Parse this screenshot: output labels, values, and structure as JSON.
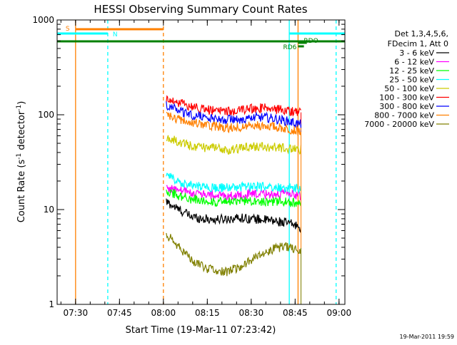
{
  "chart_data": {
    "type": "line",
    "title": "HESSI Observing Summary Count Rates",
    "xlabel": "Start Time (19-Mar-11 07:23:42)",
    "ylabel": "Count Rate (s",
    "ylabel_sup": "-1",
    "ylabel_rest": " detector",
    "ylabel_end": ")",
    "yscale": "log",
    "xlim": [
      "07:23:42",
      "09:02:00"
    ],
    "ylim": [
      1,
      1000
    ],
    "x_ticks": [
      "07:30",
      "07:45",
      "08:00",
      "08:15",
      "08:30",
      "08:45",
      "09:00"
    ],
    "y_ticks": [
      "1",
      "10",
      "100",
      "1000"
    ],
    "legend_title": [
      "Det 1,3,4,5,6,",
      "FDecim 1, Att 0"
    ],
    "legend_position": "right",
    "series": [
      {
        "name": "3 - 6 keV",
        "color": "#000000",
        "x_start": "08:01",
        "x_end": "08:47",
        "values": [
          12,
          10,
          8.5,
          8,
          7.8,
          8,
          8.2,
          8,
          7.8,
          7.5,
          7.2,
          6.5
        ]
      },
      {
        "name": "6 - 12 keV",
        "color": "#ff00ff",
        "x_start": "08:01",
        "x_end": "08:47",
        "values": [
          17,
          16,
          15,
          14.5,
          14,
          14,
          14.2,
          14.5,
          14.5,
          14.5,
          14.5,
          14
        ]
      },
      {
        "name": "12 - 25 keV",
        "color": "#00ff00",
        "x_start": "08:01",
        "x_end": "08:47",
        "values": [
          16,
          14,
          13,
          12.5,
          12,
          12,
          12.2,
          12.5,
          12.2,
          12,
          12,
          11.5
        ]
      },
      {
        "name": "25 - 50 keV",
        "color": "#00ffff",
        "x_start": "08:01",
        "x_end": "08:47",
        "values": [
          23,
          20,
          18,
          17.5,
          17,
          17,
          17.2,
          17.5,
          17.2,
          17,
          17,
          16.5
        ]
      },
      {
        "name": "50 - 100 keV",
        "color": "#cccc00",
        "x_start": "08:01",
        "x_end": "08:47",
        "values": [
          57,
          52,
          47,
          45,
          44,
          43,
          44,
          46,
          46,
          45,
          44,
          43
        ]
      },
      {
        "name": "100 - 300 keV",
        "color": "#ff0000",
        "x_start": "08:01",
        "x_end": "08:47",
        "values": [
          150,
          135,
          122,
          115,
          110,
          108,
          110,
          116,
          118,
          114,
          110,
          106
        ]
      },
      {
        "name": "300 - 800 keV",
        "color": "#0000ff",
        "x_start": "08:01",
        "x_end": "08:47",
        "values": [
          125,
          112,
          100,
          95,
          91,
          89,
          90,
          93,
          94,
          90,
          85,
          79
        ]
      },
      {
        "name": "800 - 7000 keV",
        "color": "#ff8000",
        "x_start": "08:01",
        "x_end": "08:47",
        "values": [
          100,
          90,
          83,
          78,
          75,
          73,
          74,
          77,
          77,
          74,
          71,
          66
        ]
      },
      {
        "name": "7000 - 20000 keV",
        "color": "#808000",
        "x_start": "08:01",
        "x_end": "08:47",
        "values": [
          5.5,
          4,
          3,
          2.5,
          2.2,
          2.2,
          2.5,
          3,
          3.5,
          4,
          4,
          3.8
        ]
      }
    ],
    "vertical_lines": [
      {
        "x": "07:30",
        "color": "#ff8000",
        "style": "solid"
      },
      {
        "x": "07:41",
        "color": "#00ffff",
        "style": "dashed"
      },
      {
        "x": "08:00",
        "color": "#ff8000",
        "style": "dashed"
      },
      {
        "x": "08:43",
        "color": "#00ffff",
        "style": "solid"
      },
      {
        "x": "08:46",
        "color": "#ff8000",
        "style": "solid"
      },
      {
        "x": "08:59",
        "color": "#00ffff",
        "style": "dashed"
      }
    ],
    "flag_bars": [
      {
        "label": "S",
        "color": "#ff8000",
        "segments": [
          [
            "07:30",
            "08:00"
          ]
        ],
        "level": 1
      },
      {
        "label": "N",
        "color": "#00ffff",
        "segments": [
          [
            "07:23:42",
            "07:41"
          ],
          [
            "08:43",
            "09:02"
          ]
        ],
        "level": 2
      },
      {
        "label": "",
        "color": "#008000",
        "segments": [
          [
            "07:23:42",
            "09:02"
          ]
        ],
        "level": 3
      },
      {
        "label": "RDO",
        "color": "#008000",
        "segments": [
          [
            "08:46",
            "08:49"
          ]
        ],
        "level": 4
      },
      {
        "label": "RD6",
        "color": "#008000",
        "segments": [
          [
            "08:46",
            "08:48"
          ]
        ],
        "level": 5
      }
    ]
  },
  "footer": {
    "timestamp": "19-Mar-2011 19:59"
  }
}
